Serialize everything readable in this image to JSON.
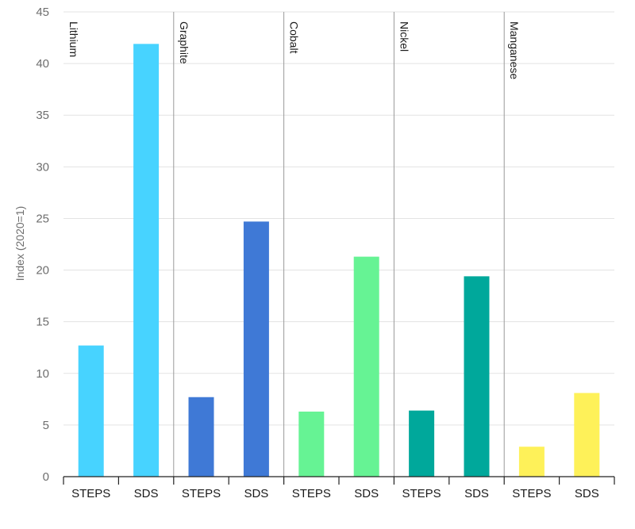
{
  "chart_data": {
    "type": "bar",
    "title": "",
    "xlabel": "",
    "ylabel": "Index (2020=1)",
    "ylim": [
      0,
      45
    ],
    "yticks": [
      0,
      5,
      10,
      15,
      20,
      25,
      30,
      35,
      40,
      45
    ],
    "grid": true,
    "scenarios": [
      "STEPS",
      "SDS"
    ],
    "groups": [
      {
        "name": "Lithium",
        "color": "#47d3ff",
        "values": [
          12.7,
          41.9
        ]
      },
      {
        "name": "Graphite",
        "color": "#3f79d6",
        "values": [
          7.7,
          24.7
        ]
      },
      {
        "name": "Cobalt",
        "color": "#66f394",
        "values": [
          6.3,
          21.3
        ]
      },
      {
        "name": "Nickel",
        "color": "#00a89b",
        "values": [
          6.4,
          19.4
        ]
      },
      {
        "name": "Manganese",
        "color": "#fef159",
        "values": [
          2.9,
          8.1
        ]
      }
    ]
  }
}
